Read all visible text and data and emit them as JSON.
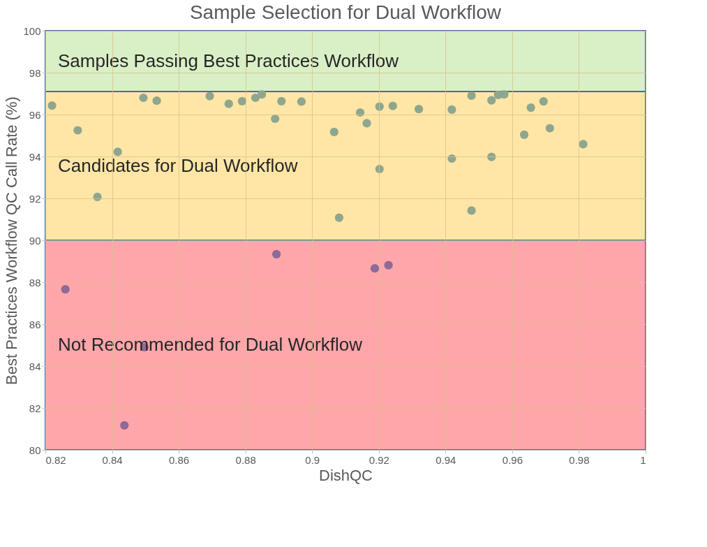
{
  "chart_data": {
    "type": "scatter",
    "title": "Sample Selection for Dual Workflow",
    "xlabel": "DishQC",
    "ylabel": "Best Practices Workflow QC Call Rate (%)",
    "xlim": [
      0.82,
      1.0
    ],
    "ylim": [
      80,
      100
    ],
    "xticks": [
      0.82,
      0.84,
      0.86,
      0.88,
      0.9,
      0.92,
      0.94,
      0.96,
      0.98,
      1
    ],
    "yticks": [
      80,
      82,
      84,
      86,
      88,
      90,
      92,
      94,
      96,
      98,
      100
    ],
    "grid": true,
    "marker": "circle",
    "bands": [
      {
        "axis": "y",
        "from": 97.1,
        "to": 100,
        "label": "Samples Passing Best Practices Workflow",
        "color": "#d9efc6"
      },
      {
        "axis": "y",
        "from": 90,
        "to": 97.1,
        "label": "Candidates for Dual Workflow",
        "color": "#ffe6a6"
      },
      {
        "axis": "y",
        "from": 80,
        "to": 90,
        "label": "Not Recommended for Dual Workflow",
        "color": "#ffa6aa"
      }
    ],
    "series": [
      {
        "color": "#8fa68e",
        "x": [
          0.822,
          0.8297,
          0.8417,
          0.8356,
          0.8494,
          0.8534,
          0.8693,
          0.875,
          0.879,
          0.883,
          0.8849,
          0.8908,
          0.8889,
          0.8968,
          0.9066,
          0.9081,
          0.9144,
          0.9164,
          0.9202,
          0.9242,
          0.9202,
          0.932,
          0.9419,
          0.9419,
          0.9478,
          0.9478,
          0.9538,
          0.9538,
          0.9558,
          0.9576,
          0.9656,
          0.9694,
          0.9636,
          0.9713,
          0.9813
        ],
        "values": [
          96.43,
          95.25,
          94.22,
          92.07,
          96.8,
          96.66,
          96.88,
          96.51,
          96.64,
          96.8,
          96.96,
          96.64,
          95.8,
          96.62,
          95.17,
          91.08,
          96.1,
          95.59,
          96.38,
          96.41,
          93.4,
          96.26,
          96.24,
          93.9,
          96.9,
          91.42,
          96.68,
          93.98,
          96.94,
          96.96,
          96.33,
          96.63,
          95.04,
          95.35,
          94.59
        ]
      },
      {
        "color": "#8e6a95",
        "x": [
          0.826,
          0.8497,
          0.8437,
          0.8893,
          0.9188,
          0.9229
        ],
        "values": [
          87.66,
          84.9,
          81.17,
          89.34,
          88.66,
          88.81
        ]
      }
    ]
  }
}
